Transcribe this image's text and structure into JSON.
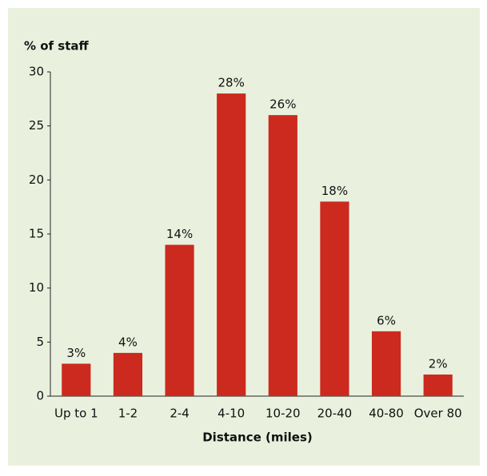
{
  "chart_data": {
    "type": "bar",
    "ylabel": "% of staff",
    "xlabel": "Distance (miles)",
    "categories": [
      "Up to 1",
      "1-2",
      "2-4",
      "4-10",
      "10-20",
      "20-40",
      "40-80",
      "Over 80"
    ],
    "values": [
      3,
      4,
      14,
      28,
      26,
      18,
      6,
      2
    ],
    "value_labels": [
      "3%",
      "4%",
      "14%",
      "28%",
      "26%",
      "18%",
      "6%",
      "2%"
    ],
    "color": "#cc2a1e",
    "ylim": [
      0,
      30
    ],
    "yticks": [
      0,
      5,
      10,
      15,
      20,
      25,
      30
    ],
    "grid": false
  }
}
